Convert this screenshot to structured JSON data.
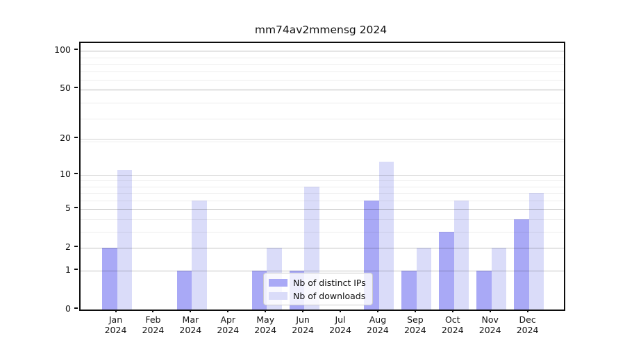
{
  "title": "mm74av2mmensg 2024",
  "chart_data": {
    "type": "bar",
    "title": "mm74av2mmensg 2024",
    "categories": [
      "Jan 2024",
      "Feb 2024",
      "Mar 2024",
      "Apr 2024",
      "May 2024",
      "Jun 2024",
      "Jul 2024",
      "Aug 2024",
      "Sep 2024",
      "Oct 2024",
      "Nov 2024",
      "Dec 2024"
    ],
    "series": [
      {
        "name": "Nb of distinct IPs",
        "color": "#a9a9f6",
        "values": [
          2,
          0,
          1,
          0,
          1,
          1,
          0,
          6,
          1,
          3,
          1,
          4
        ]
      },
      {
        "name": "Nb of downloads",
        "color": "#dadcf9",
        "values": [
          11,
          0,
          6,
          0,
          2,
          8,
          0,
          13,
          2,
          6,
          2,
          7
        ]
      }
    ],
    "xlabel": "",
    "ylabel": "",
    "yscale": "log1p",
    "yticks": [
      0,
      1,
      2,
      5,
      10,
      20,
      50,
      100
    ],
    "ytick_labels": [
      "0",
      "1",
      "2",
      "5",
      "10",
      "20",
      "50",
      "100"
    ],
    "ylim": [
      0,
      113
    ],
    "grid": "horizontal-major-and-minor",
    "legend_position": "lower-center-inside",
    "bar_group": "side-by-side"
  },
  "colors": {
    "series_distinct_ips": "#a9a9f6",
    "series_downloads": "#dadcf9",
    "spine": "#0d0d0d",
    "grid_major": "rgba(0,0,0,0.18)",
    "grid_minor": "rgba(0,0,0,0.07)",
    "legend_border": "#cccccc"
  },
  "legend": {
    "items": [
      {
        "label": "Nb of distinct IPs"
      },
      {
        "label": "Nb of downloads"
      }
    ]
  }
}
